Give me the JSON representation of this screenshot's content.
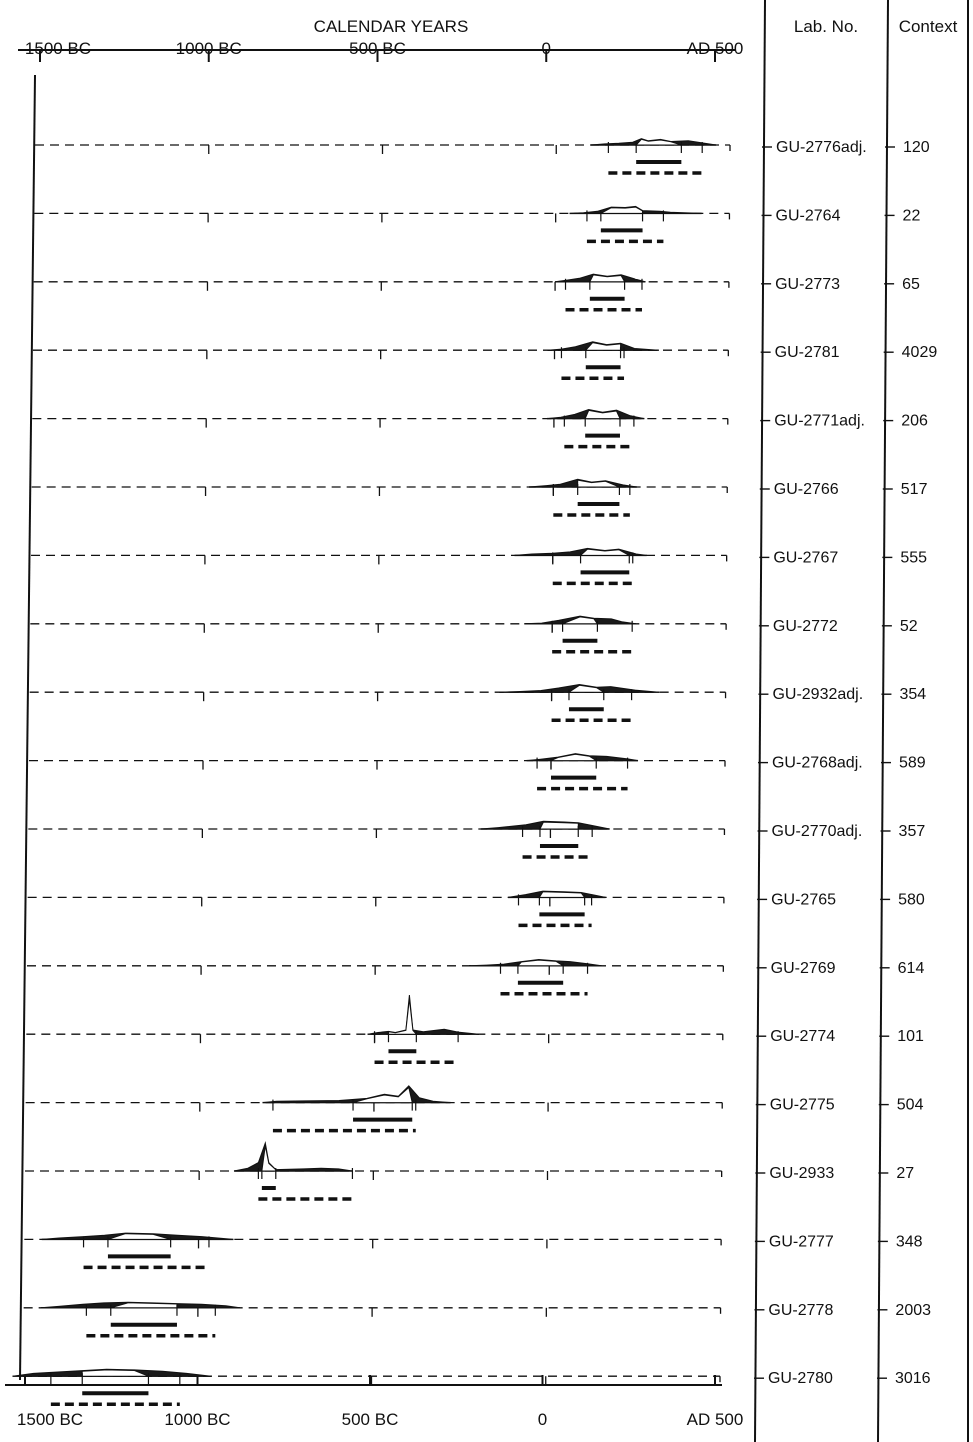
{
  "chart_data": {
    "type": "radiocarbon-calibration",
    "title": "",
    "axis_title": "CALENDAR YEARS",
    "x_unit": "calendar year (negative = BC)",
    "xlim": [
      -1500,
      500
    ],
    "ticks": [
      -1500,
      -1000,
      -500,
      0,
      500
    ],
    "tick_labels_top": [
      "1500 BC",
      "1000 BC",
      "500 BC",
      "0",
      "AD 500"
    ],
    "tick_labels_bottom": [
      "1500 BC",
      "1000 BC",
      "500 BC",
      "0",
      "AD 500"
    ],
    "columns": {
      "lab": "Lab. No.",
      "context": "Context"
    },
    "samples": [
      {
        "lab": "GU-2776adj.",
        "context": "120",
        "range_1sigma": [
          230,
          360
        ],
        "range_2sigma": [
          150,
          420
        ],
        "distribution": [
          [
            100,
            0
          ],
          [
            140,
            0.08
          ],
          [
            180,
            0.12
          ],
          [
            220,
            0.2
          ],
          [
            245,
            0.45
          ],
          [
            265,
            0.3
          ],
          [
            300,
            0.4
          ],
          [
            330,
            0.25
          ],
          [
            380,
            0.3
          ],
          [
            420,
            0.15
          ],
          [
            460,
            0
          ]
        ]
      },
      {
        "lab": "GU-2764",
        "context": "22",
        "range_1sigma": [
          130,
          250
        ],
        "range_2sigma": [
          90,
          310
        ],
        "distribution": [
          [
            40,
            0
          ],
          [
            80,
            0.05
          ],
          [
            120,
            0.15
          ],
          [
            160,
            0.45
          ],
          [
            200,
            0.42
          ],
          [
            230,
            0.5
          ],
          [
            250,
            0.2
          ],
          [
            300,
            0.15
          ],
          [
            330,
            0.08
          ],
          [
            420,
            0
          ]
        ]
      },
      {
        "lab": "GU-2773",
        "context": "65",
        "range_1sigma": [
          100,
          200
        ],
        "range_2sigma": [
          30,
          250
        ],
        "distribution": [
          [
            0,
            0
          ],
          [
            30,
            0.1
          ],
          [
            70,
            0.25
          ],
          [
            110,
            0.55
          ],
          [
            150,
            0.4
          ],
          [
            190,
            0.5
          ],
          [
            230,
            0.2
          ],
          [
            260,
            0
          ]
        ]
      },
      {
        "lab": "GU-2781",
        "context": "4029",
        "range_1sigma": [
          90,
          190
        ],
        "range_2sigma": [
          20,
          200
        ],
        "distribution": [
          [
            -20,
            0
          ],
          [
            20,
            0.08
          ],
          [
            60,
            0.25
          ],
          [
            110,
            0.6
          ],
          [
            150,
            0.4
          ],
          [
            190,
            0.5
          ],
          [
            230,
            0.12
          ],
          [
            300,
            0
          ]
        ]
      },
      {
        "lab": "GU-2771adj.",
        "context": "206",
        "range_1sigma": [
          90,
          190
        ],
        "range_2sigma": [
          30,
          230
        ],
        "distribution": [
          [
            -20,
            0
          ],
          [
            20,
            0.1
          ],
          [
            60,
            0.3
          ],
          [
            100,
            0.65
          ],
          [
            140,
            0.45
          ],
          [
            180,
            0.6
          ],
          [
            220,
            0.2
          ],
          [
            260,
            0
          ]
        ]
      },
      {
        "lab": "GU-2766",
        "context": "517",
        "range_1sigma": [
          70,
          190
        ],
        "range_2sigma": [
          0,
          220
        ],
        "distribution": [
          [
            -70,
            0
          ],
          [
            -20,
            0.1
          ],
          [
            20,
            0.2
          ],
          [
            70,
            0.55
          ],
          [
            110,
            0.35
          ],
          [
            150,
            0.45
          ],
          [
            200,
            0.15
          ],
          [
            240,
            0
          ]
        ]
      },
      {
        "lab": "GU-2767",
        "context": "555",
        "range_1sigma": [
          80,
          220
        ],
        "range_2sigma": [
          0,
          230
        ],
        "distribution": [
          [
            -110,
            0
          ],
          [
            -60,
            0.1
          ],
          [
            0,
            0.15
          ],
          [
            50,
            0.25
          ],
          [
            100,
            0.5
          ],
          [
            150,
            0.35
          ],
          [
            190,
            0.45
          ],
          [
            240,
            0.1
          ],
          [
            270,
            0
          ]
        ]
      },
      {
        "lab": "GU-2772",
        "context": "52",
        "range_1sigma": [
          30,
          130
        ],
        "range_2sigma": [
          0,
          230
        ],
        "distribution": [
          [
            -80,
            0
          ],
          [
            -30,
            0.05
          ],
          [
            20,
            0.25
          ],
          [
            80,
            0.55
          ],
          [
            120,
            0.4
          ],
          [
            170,
            0.35
          ],
          [
            200,
            0.15
          ],
          [
            240,
            0
          ]
        ]
      },
      {
        "lab": "GU-2932adj.",
        "context": "354",
        "range_1sigma": [
          50,
          150
        ],
        "range_2sigma": [
          0,
          230
        ],
        "distribution": [
          [
            -150,
            0
          ],
          [
            -90,
            0.05
          ],
          [
            -30,
            0.12
          ],
          [
            20,
            0.3
          ],
          [
            80,
            0.55
          ],
          [
            130,
            0.35
          ],
          [
            170,
            0.4
          ],
          [
            240,
            0.15
          ],
          [
            310,
            0
          ]
        ]
      },
      {
        "lab": "GU-2768adj.",
        "context": "589",
        "range_1sigma": [
          0,
          130
        ],
        "range_2sigma": [
          -40,
          220
        ],
        "distribution": [
          [
            -70,
            0
          ],
          [
            -30,
            0.1
          ],
          [
            20,
            0.25
          ],
          [
            70,
            0.5
          ],
          [
            110,
            0.35
          ],
          [
            160,
            0.3
          ],
          [
            220,
            0.12
          ],
          [
            250,
            0
          ]
        ]
      },
      {
        "lab": "GU-2770adj.",
        "context": "357",
        "range_1sigma": [
          -30,
          80
        ],
        "range_2sigma": [
          -80,
          120
        ],
        "distribution": [
          [
            -200,
            0
          ],
          [
            -150,
            0.1
          ],
          [
            -70,
            0.3
          ],
          [
            -20,
            0.55
          ],
          [
            40,
            0.5
          ],
          [
            80,
            0.45
          ],
          [
            120,
            0.25
          ],
          [
            170,
            0
          ]
        ]
      },
      {
        "lab": "GU-2765",
        "context": "580",
        "range_1sigma": [
          -30,
          100
        ],
        "range_2sigma": [
          -90,
          120
        ],
        "distribution": [
          [
            -120,
            0
          ],
          [
            -70,
            0.2
          ],
          [
            -20,
            0.45
          ],
          [
            40,
            0.4
          ],
          [
            90,
            0.35
          ],
          [
            130,
            0.15
          ],
          [
            160,
            0
          ]
        ]
      },
      {
        "lab": "GU-2769",
        "context": "614",
        "range_1sigma": [
          -90,
          40
        ],
        "range_2sigma": [
          -140,
          110
        ],
        "distribution": [
          [
            -230,
            0
          ],
          [
            -180,
            0.05
          ],
          [
            -130,
            0.12
          ],
          [
            -80,
            0.3
          ],
          [
            -30,
            0.45
          ],
          [
            20,
            0.35
          ],
          [
            60,
            0.3
          ],
          [
            110,
            0.15
          ],
          [
            150,
            0
          ]
        ]
      },
      {
        "lab": "GU-2774",
        "context": "101",
        "range_1sigma": [
          -460,
          -380
        ],
        "range_2sigma": [
          -500,
          -260
        ],
        "distribution": [
          [
            -520,
            0
          ],
          [
            -490,
            0.12
          ],
          [
            -460,
            0.2
          ],
          [
            -440,
            0.12
          ],
          [
            -410,
            0.3
          ],
          [
            -400,
            2.8
          ],
          [
            -390,
            0.3
          ],
          [
            -360,
            0.18
          ],
          [
            -300,
            0.35
          ],
          [
            -260,
            0.15
          ],
          [
            -200,
            0
          ]
        ]
      },
      {
        "lab": "GU-2775",
        "context": "504",
        "range_1sigma": [
          -560,
          -390
        ],
        "range_2sigma": [
          -790,
          -380
        ],
        "distribution": [
          [
            -820,
            0
          ],
          [
            -780,
            0.1
          ],
          [
            -700,
            0.12
          ],
          [
            -600,
            0.15
          ],
          [
            -520,
            0.3
          ],
          [
            -470,
            0.6
          ],
          [
            -430,
            0.45
          ],
          [
            -400,
            1.2
          ],
          [
            -370,
            0.35
          ],
          [
            -330,
            0.1
          ],
          [
            -280,
            0
          ]
        ]
      },
      {
        "lab": "GU-2933",
        "context": "27",
        "range_1sigma": [
          -820,
          -780
        ],
        "range_2sigma": [
          -830,
          -560
        ],
        "distribution": [
          [
            -900,
            0
          ],
          [
            -860,
            0.2
          ],
          [
            -830,
            0.6
          ],
          [
            -810,
            2.0
          ],
          [
            -800,
            0.6
          ],
          [
            -780,
            0.1
          ],
          [
            -700,
            0.15
          ],
          [
            -650,
            0.2
          ],
          [
            -600,
            0.15
          ],
          [
            -560,
            0
          ]
        ]
      },
      {
        "lab": "GU-2777",
        "context": "348",
        "range_1sigma": [
          -1260,
          -1080
        ],
        "range_2sigma": [
          -1330,
          -970
        ],
        "distribution": [
          [
            -1450,
            0
          ],
          [
            -1400,
            0.1
          ],
          [
            -1330,
            0.2
          ],
          [
            -1270,
            0.3
          ],
          [
            -1210,
            0.45
          ],
          [
            -1130,
            0.4
          ],
          [
            -1060,
            0.3
          ],
          [
            -990,
            0.2
          ],
          [
            -900,
            0
          ]
        ]
      },
      {
        "lab": "GU-2778",
        "context": "2003",
        "range_1sigma": [
          -1250,
          -1060
        ],
        "range_2sigma": [
          -1320,
          -950
        ],
        "distribution": [
          [
            -1450,
            0
          ],
          [
            -1400,
            0.1
          ],
          [
            -1330,
            0.25
          ],
          [
            -1270,
            0.35
          ],
          [
            -1200,
            0.4
          ],
          [
            -1130,
            0.35
          ],
          [
            -1060,
            0.3
          ],
          [
            -990,
            0.25
          ],
          [
            -920,
            0.15
          ],
          [
            -880,
            0
          ]
        ]
      },
      {
        "lab": "GU-2780",
        "context": "3016",
        "range_1sigma": [
          -1330,
          -1140
        ],
        "range_2sigma": [
          -1420,
          -1050
        ],
        "distribution": [
          [
            -1530,
            0
          ],
          [
            -1470,
            0.2
          ],
          [
            -1400,
            0.3
          ],
          [
            -1330,
            0.4
          ],
          [
            -1260,
            0.5
          ],
          [
            -1180,
            0.45
          ],
          [
            -1100,
            0.35
          ],
          [
            -1030,
            0.2
          ],
          [
            -960,
            0
          ]
        ]
      }
    ]
  }
}
